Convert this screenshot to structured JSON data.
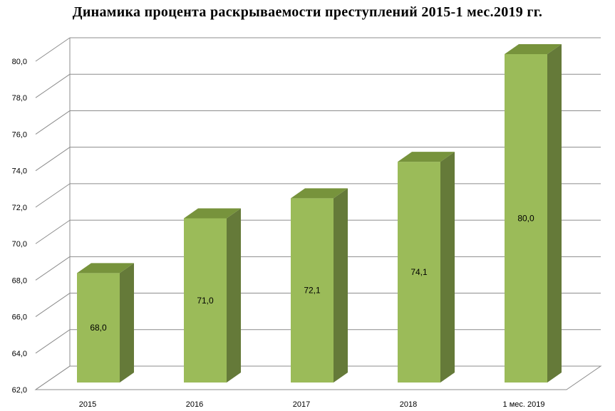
{
  "chart_data": {
    "type": "bar",
    "title": "Динамика процента раскрываемости преступлений 2015-1 мес.2019 гг.",
    "categories": [
      "2015",
      "2016",
      "2017",
      "2018",
      "1 мес. 2019"
    ],
    "series": [
      {
        "values": [
          68.0,
          71.0,
          72.1,
          74.1,
          80.0
        ]
      }
    ],
    "data_labels": [
      "68,0",
      "71,0",
      "72,1",
      "74,1",
      "80,0"
    ],
    "y_ticks": [
      "62,0",
      "64,0",
      "66,0",
      "68,0",
      "70,0",
      "72,0",
      "74,0",
      "76,0",
      "78,0",
      "80,0"
    ],
    "ylim": [
      62,
      80
    ],
    "xlabel": "",
    "ylabel": "",
    "grid": true,
    "style": "3d-column",
    "colors": {
      "bar_front": "#9bbb59",
      "bar_top": "#77933c",
      "bar_side": "#657a39",
      "grid": "#8c8c8c"
    }
  }
}
